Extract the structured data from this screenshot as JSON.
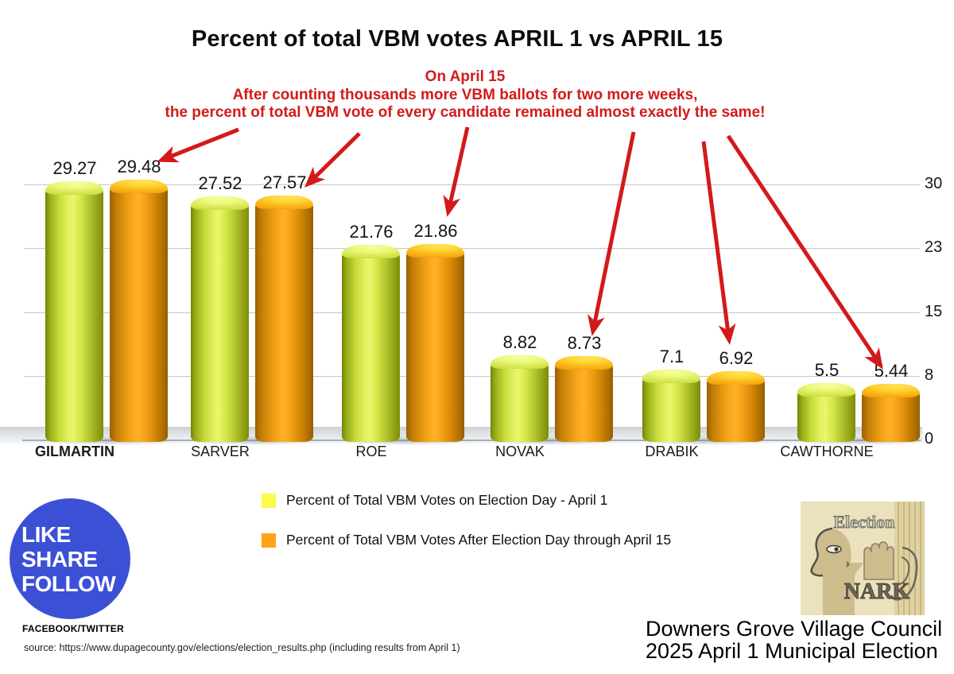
{
  "title": "Percent of total VBM votes APRIL 1 vs  APRIL 15",
  "annotation": {
    "lines": [
      "On April 15",
      "After counting thousands more VBM ballots for two more weeks,",
      "the percent  of total VBM vote of every candidate remained almost exactly the same!"
    ]
  },
  "chart_data": {
    "type": "bar",
    "title": "Percent of total VBM votes APRIL 1 vs  APRIL 15",
    "categories": [
      "GILMARTIN",
      "SARVER",
      "ROE",
      "NOVAK",
      "DRABIK",
      "CAWTHORNE"
    ],
    "emphasized_category": "GILMARTIN",
    "series": [
      {
        "name": "Percent of Total VBM Votes on Election Day - April 1",
        "values": [
          29.27,
          27.52,
          21.76,
          8.82,
          7.1,
          5.5
        ],
        "labels": [
          "29.27",
          "27.52",
          "21.76",
          "8.82",
          "7.1",
          "5.5"
        ]
      },
      {
        "name": "Percent of Total VBM Votes After Election Day through April 15",
        "values": [
          29.48,
          27.57,
          21.86,
          8.73,
          6.92,
          5.44
        ],
        "labels": [
          "29.48",
          "27.57",
          "21.86",
          "8.73",
          "6.92",
          "5.44"
        ]
      }
    ],
    "y_axis": {
      "side": "right",
      "tick_labels": [
        "0",
        "8",
        "15",
        "23",
        "30"
      ],
      "ylim": [
        0,
        30
      ]
    },
    "grid": true,
    "legend_position": "bottom",
    "bar_style": "3d-cylinder"
  },
  "colors": {
    "red": "#d21a1a",
    "social_blue": "#3c50d6",
    "legend_april1": "#fbfb4a",
    "legend_april15": "#ffa317",
    "bar_april1_mid": "#e3f160",
    "bar_april15_mid": "#fcab20"
  },
  "social": {
    "lines": [
      "LIKE",
      "SHARE",
      "FOLLOW"
    ],
    "caption": "FACEBOOK/TWITTER"
  },
  "source_note": "source: https://www.dupagecounty.gov/elections/election_results.php (including results from April 1)",
  "footer": {
    "line1": "Downers Grove Village Council",
    "line2": "2025 April 1 Municipal Election"
  },
  "logo": {
    "top": "Election",
    "bottom": "NARK"
  }
}
